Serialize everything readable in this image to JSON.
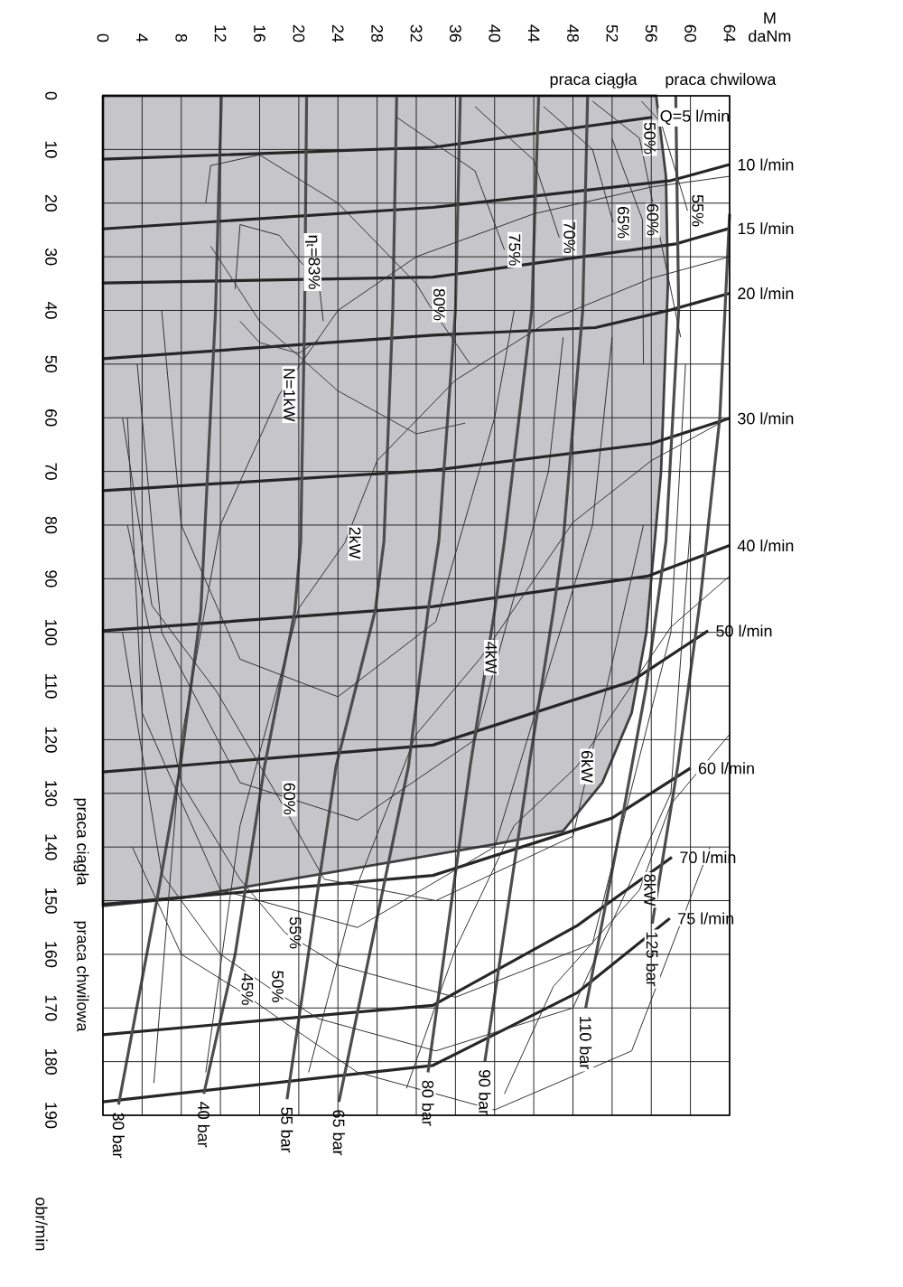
{
  "chart_data": {
    "type": "line",
    "xlabel": "M daNm",
    "ylabel": "obr/min",
    "xlim": [
      0,
      64
    ],
    "xticks": [
      0,
      4,
      8,
      12,
      16,
      20,
      24,
      28,
      32,
      36,
      40,
      44,
      48,
      52,
      56,
      60,
      64
    ],
    "ylim": [
      190,
      0
    ],
    "yticks": [
      0,
      10,
      20,
      30,
      40,
      50,
      60,
      70,
      80,
      90,
      100,
      110,
      120,
      130,
      140,
      150,
      160,
      170,
      180,
      190
    ],
    "grid": true,
    "marker": "none",
    "series": [
      {
        "type": "area",
        "color": "#c6c6ca",
        "x": [
          0,
          8,
          16,
          24,
          32,
          40,
          47,
          51,
          54,
          55.5,
          57,
          57.7,
          57.5,
          56.5
        ],
        "values": [
          151,
          149.5,
          147,
          144.5,
          142,
          139.5,
          137,
          128,
          115,
          100,
          70,
          35,
          15,
          0
        ]
      },
      {
        "name": "Q=5 l/min",
        "color": "#262626",
        "x": [
          0,
          33.7,
          56.1
        ],
        "values": [
          11.8,
          9.6,
          4
        ]
      },
      {
        "name": "10 l/min",
        "color": "#262626",
        "x": [
          0,
          33.7,
          58,
          64
        ],
        "values": [
          24.8,
          20.8,
          15.8,
          12.8
        ]
      },
      {
        "name": "15 l/min",
        "color": "#262626",
        "x": [
          0,
          33.7,
          58.5,
          64
        ],
        "values": [
          34.9,
          33.8,
          27.6,
          24.7
        ]
      },
      {
        "name": "20 l/min",
        "color": "#262626",
        "x": [
          0,
          33.7,
          50.3,
          58,
          64
        ],
        "values": [
          49,
          44.6,
          43.2,
          39.9,
          36.8
        ]
      },
      {
        "name": "30 l/min",
        "color": "#262626",
        "x": [
          0,
          33.7,
          56,
          64
        ],
        "values": [
          73.6,
          69.8,
          64.8,
          60.1
        ]
      },
      {
        "name": "40 l/min",
        "color": "#262626",
        "x": [
          0,
          33.7,
          55.7,
          64
        ],
        "values": [
          99.7,
          95.2,
          89.5,
          83.8
        ]
      },
      {
        "name": "50 l/min",
        "color": "#262626",
        "x": [
          0,
          33.7,
          53.9,
          61.8
        ],
        "values": [
          126,
          121,
          109.2,
          99.7
        ]
      },
      {
        "name": "60 l/min",
        "color": "#262626",
        "x": [
          0,
          33.7,
          52,
          60
        ],
        "values": [
          150.7,
          145.3,
          134.6,
          125.3
        ]
      },
      {
        "name": "70 l/min",
        "color": "#262626",
        "x": [
          0,
          33.7,
          48.4,
          58.1
        ],
        "values": [
          175,
          169.5,
          154.7,
          141.9
        ]
      },
      {
        "name": "75 l/min",
        "color": "#262626",
        "x": [
          0,
          33.7,
          48.4,
          57.9
        ],
        "values": [
          187.5,
          180.7,
          167.2,
          153.3
        ]
      },
      {
        "name": "30 bar",
        "color": "#4d4d4d",
        "x": [
          12.1,
          11.5,
          10,
          7.9,
          5.5,
          1.6
        ],
        "values": [
          0,
          40,
          96,
          125,
          150,
          188
        ]
      },
      {
        "name": "40 bar",
        "color": "#4d4d4d",
        "x": [
          20.8,
          20.6,
          20.2,
          19.6,
          16.5,
          13.5,
          10.3
        ],
        "values": [
          0,
          40,
          83,
          96,
          125,
          160,
          186
        ]
      },
      {
        "name": "55 bar",
        "color": "#4d4d4d",
        "x": [
          30,
          29.6,
          28.7,
          27.8,
          23.8,
          18.8
        ],
        "values": [
          0,
          40,
          83,
          96,
          125,
          187
        ]
      },
      {
        "name": "65 bar",
        "color": "#4d4d4d",
        "x": [
          36.5,
          36,
          34.3,
          33.2,
          31.2,
          24.1
        ],
        "values": [
          0,
          40,
          83,
          96,
          125,
          187.5
        ]
      },
      {
        "name": "80 bar",
        "color": "#4d4d4d",
        "x": [
          44.5,
          43.8,
          41,
          40,
          37.5,
          33.2
        ],
        "values": [
          0,
          40,
          83,
          96,
          125,
          182
        ]
      },
      {
        "name": "90 bar",
        "color": "#4d4d4d",
        "x": [
          49.5,
          49,
          47,
          46,
          43.5,
          39
        ],
        "values": [
          0,
          40,
          83,
          96,
          125,
          180
        ]
      },
      {
        "name": "110 bar",
        "color": "#4d4d4d",
        "x": [
          58.5,
          58.8,
          57.5,
          55.5,
          53,
          49.3
        ],
        "values": [
          0,
          40,
          83,
          110,
          135,
          170
        ]
      },
      {
        "name": "125 bar",
        "color": "#4d4d4d",
        "x": [
          64,
          63,
          61,
          58.7,
          56.1
        ],
        "values": [
          22,
          60,
          94,
          125,
          154.3
        ]
      },
      {
        "color": "#333333",
        "x": [
          13.5,
          14,
          18,
          20.2,
          22,
          22.5
        ],
        "values": [
          36,
          24,
          26,
          31,
          34,
          42
        ]
      },
      {
        "color": "#3c3c3c",
        "x": [
          14,
          16,
          20,
          22
        ],
        "values": [
          42,
          46,
          48,
          45.5
        ]
      },
      {
        "color": "#333333",
        "x": [
          10.5,
          11,
          16,
          24,
          32,
          33.3,
          37.5
        ],
        "values": [
          20,
          13,
          11,
          20,
          35,
          38.9,
          50
        ]
      },
      {
        "color": "#3c3c3c",
        "x": [
          11,
          16,
          24,
          32,
          37
        ],
        "values": [
          28,
          42,
          55,
          63,
          61
        ]
      },
      {
        "color": "#333333",
        "x": [
          6,
          8,
          14,
          24,
          34,
          40,
          42
        ],
        "values": [
          40,
          80,
          105,
          112,
          98,
          60,
          40
        ]
      },
      {
        "color": "#333333",
        "x": [
          30,
          38,
          41
        ],
        "values": [
          4,
          14,
          28.7
        ]
      },
      {
        "color": "#333333",
        "x": [
          3.5,
          6,
          14,
          26,
          38,
          45.5,
          47
        ],
        "values": [
          50,
          100,
          128,
          135,
          120,
          70,
          45
        ]
      },
      {
        "color": "#333333",
        "x": [
          38,
          44,
          46.6
        ],
        "values": [
          2,
          12,
          26.4
        ]
      },
      {
        "color": "#333333",
        "x": [
          2.5,
          4,
          12,
          26,
          40,
          50,
          52
        ],
        "values": [
          60,
          115,
          148,
          155,
          140,
          80,
          45
        ]
      },
      {
        "color": "#333333",
        "x": [
          45,
          50,
          52.1
        ],
        "values": [
          2,
          10,
          23.6
        ]
      },
      {
        "color": "#333333",
        "x": [
          2,
          5,
          11.6,
          18,
          22.6,
          34,
          48,
          55.2
        ],
        "values": [
          60,
          95,
          111,
          131,
          146,
          150,
          138,
          80
        ]
      },
      {
        "color": "#333333",
        "x": [
          52,
          55.1,
          55.2
        ],
        "values": [
          8,
          23.1,
          50
        ]
      },
      {
        "color": "#333333",
        "x": [
          2.5,
          8,
          14,
          18.6,
          24,
          36,
          50,
          58,
          59.5
        ],
        "values": [
          80,
          128,
          146,
          156,
          162,
          168,
          158,
          100,
          50
        ]
      },
      {
        "color": "#333333",
        "x": [
          55,
          57,
          59.7
        ],
        "values": [
          1,
          5,
          21.4
        ]
      },
      {
        "color": "#333333",
        "x": [
          2,
          6,
          12,
          16.8,
          22,
          34,
          48,
          58,
          60
        ],
        "values": [
          100,
          145,
          160,
          166,
          172,
          178,
          170,
          130,
          80
        ]
      },
      {
        "color": "#333333",
        "x": [
          50,
          54.8,
          59
        ],
        "values": [
          1,
          7.9,
          45
        ]
      },
      {
        "color": "#333333",
        "x": [
          3,
          8,
          13.7,
          18,
          26,
          40,
          54,
          62
        ],
        "values": [
          140,
          160,
          166.5,
          172,
          182,
          189,
          178,
          140
        ]
      },
      {
        "color": "#333333",
        "x": [
          5.2,
          8,
          12,
          18,
          24,
          32,
          44,
          56,
          64
        ],
        "values": [
          184,
          120,
          80,
          55.7,
          40,
          30,
          22,
          17,
          15
        ]
      },
      {
        "color": "#333333",
        "x": [
          10.5,
          14,
          20,
          24.7,
          28,
          36,
          46,
          56,
          64
        ],
        "values": [
          182,
          136,
          95.5,
          83.3,
          68,
          53,
          41.5,
          34,
          30
        ]
      },
      {
        "color": "#333333",
        "x": [
          21,
          26,
          32,
          38.6,
          48,
          56,
          64
        ],
        "values": [
          182,
          147,
          119,
          104.7,
          79.5,
          68,
          60
        ]
      },
      {
        "color": "#333333",
        "x": [
          31,
          36,
          42,
          48.4,
          58,
          64
        ],
        "values": [
          185,
          159,
          136,
          125,
          99,
          89.5
        ]
      },
      {
        "color": "#333333",
        "x": [
          41,
          46,
          54.8,
          58,
          64
        ],
        "values": [
          186,
          166,
          148,
          132,
          119
        ]
      }
    ],
    "annotations": [
      {
        "text": "η$_{t}$=83%",
        "x": 20.2,
        "y": 31
      },
      {
        "text": "80%",
        "x": 33.3,
        "y": 38.9
      },
      {
        "text": "75%",
        "x": 41,
        "y": 28.7
      },
      {
        "text": "70%",
        "x": 46.6,
        "y": 26.4
      },
      {
        "text": "65%",
        "x": 52.1,
        "y": 23.6
      },
      {
        "text": "60%",
        "x": 55.1,
        "y": 23.1
      },
      {
        "text": "55%",
        "x": 59.7,
        "y": 21.4
      },
      {
        "text": "50%",
        "x": 54.8,
        "y": 7.9
      },
      {
        "text": "60%",
        "x": 18,
        "y": 131
      },
      {
        "text": "55%",
        "x": 18.6,
        "y": 156
      },
      {
        "text": "50%",
        "x": 16.8,
        "y": 166
      },
      {
        "text": "45%",
        "x": 13.7,
        "y": 166.5
      },
      {
        "text": "N=1kW",
        "x": 18,
        "y": 55.7
      },
      {
        "text": "2kW",
        "x": 24.7,
        "y": 83.3
      },
      {
        "text": "4kW",
        "x": 38.6,
        "y": 104.7
      },
      {
        "text": "6kW",
        "x": 48.4,
        "y": 125
      },
      {
        "text": "8kW",
        "x": 54.8,
        "y": 148
      },
      "praca ciągła",
      "praca chwilowa",
      "praca ciągła",
      "praca chwilowa"
    ]
  }
}
